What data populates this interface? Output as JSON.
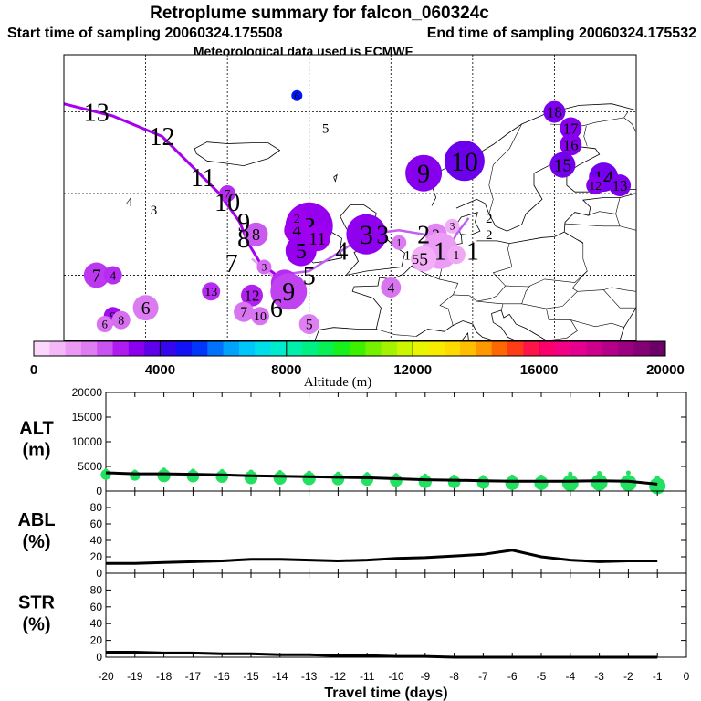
{
  "title": "Retroplume summary for falcon_060324c",
  "start_label": "Start time of sampling 20060324.175508",
  "end_label": "End time of sampling 20060324.175532",
  "met_label": "Meteorological data used is ECMWF",
  "colorbar": {
    "title": "Altitude (m)",
    "ticks": [
      "0",
      "4000",
      "8000",
      "12000",
      "16000",
      "20000"
    ],
    "range": [
      0,
      20000
    ]
  },
  "map_labels": [
    {
      "t": "13",
      "lon": -36,
      "lat": 70,
      "s": "large"
    },
    {
      "t": "12",
      "lon": -28,
      "lat": 67,
      "s": "large"
    },
    {
      "t": "11",
      "lon": -23,
      "lat": 62,
      "s": "large"
    },
    {
      "t": "10",
      "lon": -20,
      "lat": 59,
      "s": "large"
    },
    {
      "t": "9",
      "lon": -18,
      "lat": 56.5,
      "s": "large"
    },
    {
      "t": "8",
      "lon": -18,
      "lat": 54.5,
      "s": "large"
    },
    {
      "t": "7",
      "lon": -19.5,
      "lat": 51.5,
      "s": "large"
    },
    {
      "t": "6",
      "lon": -14,
      "lat": 46,
      "s": "large"
    },
    {
      "t": "5",
      "lon": -10,
      "lat": 50,
      "s": "large"
    },
    {
      "t": "4",
      "lon": -6,
      "lat": 53,
      "s": "large"
    },
    {
      "t": "3",
      "lon": -1,
      "lat": 55,
      "s": "large"
    },
    {
      "t": "2",
      "lon": 4,
      "lat": 55,
      "s": "large"
    },
    {
      "t": "1",
      "lon": 10,
      "lat": 53,
      "s": "large"
    },
    {
      "t": "4",
      "lon": -32,
      "lat": 59,
      "s": "small"
    },
    {
      "t": "3",
      "lon": -29,
      "lat": 58,
      "s": "small"
    },
    {
      "t": "6",
      "lon": -11,
      "lat": 80,
      "s": "small"
    },
    {
      "t": "5",
      "lon": -8,
      "lat": 68,
      "s": "small"
    },
    {
      "t": "2",
      "lon": 12,
      "lat": 57,
      "s": "small"
    },
    {
      "t": "1",
      "lon": 2,
      "lat": 52.5,
      "s": "small"
    },
    {
      "t": "5",
      "lon": 3,
      "lat": 52,
      "s": "small"
    },
    {
      "t": "2",
      "lon": 12,
      "lat": 55,
      "s": "small"
    }
  ],
  "plume_circles": [
    {
      "t": "9",
      "lon": 4,
      "lat": 62.5,
      "r": 20,
      "z": 3300
    },
    {
      "t": "10",
      "lon": 9,
      "lat": 64,
      "r": 22,
      "z": 3600
    },
    {
      "t": "3",
      "lon": -10,
      "lat": 56,
      "r": 26,
      "z": 3100
    },
    {
      "t": "3",
      "lon": -3,
      "lat": 55,
      "r": 22,
      "z": 3200
    },
    {
      "t": "4",
      "lon": -11.5,
      "lat": 55.5,
      "r": 14,
      "z": 3000
    },
    {
      "t": "2",
      "lon": -11.5,
      "lat": 57,
      "r": 10,
      "z": 3000
    },
    {
      "t": "5",
      "lon": -11,
      "lat": 53,
      "r": 17,
      "z": 3100
    },
    {
      "t": "11",
      "lon": -9,
      "lat": 54.5,
      "r": 14,
      "z": 3000
    },
    {
      "t": "8",
      "lon": -16.5,
      "lat": 55,
      "r": 13,
      "z": 2200
    },
    {
      "t": "3",
      "lon": -15.5,
      "lat": 51,
      "r": 8,
      "z": 2000
    },
    {
      "t": "6",
      "lon": -13,
      "lat": 49,
      "r": 15,
      "z": 2600
    },
    {
      "t": "9",
      "lon": -12.5,
      "lat": 48,
      "r": 20,
      "z": 2400
    },
    {
      "t": "7",
      "lon": -20,
      "lat": 60,
      "r": 9,
      "z": 2600
    },
    {
      "t": "2",
      "lon": 5.5,
      "lat": 55,
      "r": 12,
      "z": 1600
    },
    {
      "t": "1",
      "lon": 6,
      "lat": 53,
      "r": 20,
      "z": 1200
    },
    {
      "t": "5",
      "lon": 4,
      "lat": 52,
      "r": 14,
      "z": 900
    },
    {
      "t": "3",
      "lon": 7.5,
      "lat": 56,
      "r": 8,
      "z": 900
    },
    {
      "t": "1",
      "lon": 8,
      "lat": 52.5,
      "r": 10,
      "z": 1000
    },
    {
      "t": "4",
      "lon": 0,
      "lat": 48.5,
      "r": 11,
      "z": 1900
    },
    {
      "t": "1",
      "lon": 1,
      "lat": 54,
      "r": 8,
      "z": 1800
    },
    {
      "t": "7",
      "lon": -36,
      "lat": 50,
      "r": 14,
      "z": 2500
    },
    {
      "t": "4",
      "lon": -34,
      "lat": 50,
      "r": 10,
      "z": 2600
    },
    {
      "t": "13",
      "lon": -22,
      "lat": 48,
      "r": 10,
      "z": 2600
    },
    {
      "t": "12",
      "lon": -17,
      "lat": 47.5,
      "r": 12,
      "z": 2700
    },
    {
      "t": "7",
      "lon": -18,
      "lat": 45.5,
      "r": 11,
      "z": 1900
    },
    {
      "t": "10",
      "lon": -16,
      "lat": 45,
      "r": 10,
      "z": 1900
    },
    {
      "t": "6",
      "lon": -30,
      "lat": 46,
      "r": 14,
      "z": 1800
    },
    {
      "t": "5",
      "lon": -10,
      "lat": 44,
      "r": 11,
      "z": 1700
    },
    {
      "t": "9",
      "lon": -34,
      "lat": 45,
      "r": 10,
      "z": 2900
    },
    {
      "t": "8",
      "lon": -33,
      "lat": 44.5,
      "r": 10,
      "z": 2000
    },
    {
      "t": "6",
      "lon": -35,
      "lat": 44,
      "r": 9,
      "z": 1900
    },
    {
      "t": "6",
      "lon": -11.5,
      "lat": 72,
      "r": 6,
      "z": 5000
    },
    {
      "t": "18",
      "lon": 20,
      "lat": 70,
      "r": 12,
      "z": 3400
    },
    {
      "t": "17",
      "lon": 22,
      "lat": 68,
      "r": 12,
      "z": 3300
    },
    {
      "t": "16",
      "lon": 22,
      "lat": 66,
      "r": 12,
      "z": 3300
    },
    {
      "t": "15",
      "lon": 21,
      "lat": 63.5,
      "r": 14,
      "z": 3500
    },
    {
      "t": "14",
      "lon": 26,
      "lat": 62,
      "r": 16,
      "z": 3500
    },
    {
      "t": "13",
      "lon": 28,
      "lat": 61,
      "r": 12,
      "z": 3400
    },
    {
      "t": "12",
      "lon": 25,
      "lat": 61,
      "r": 10,
      "z": 3300
    }
  ],
  "trajectory_main": [
    [
      -40,
      71
    ],
    [
      -34,
      69.5
    ],
    [
      -28,
      67
    ],
    [
      -23,
      62
    ],
    [
      -21,
      60
    ],
    [
      -18.5,
      56.5
    ],
    [
      -17.5,
      54
    ],
    [
      -16,
      51.5
    ],
    [
      -14,
      50
    ]
  ],
  "trajectory_east": [
    [
      -14,
      50
    ],
    [
      -10,
      50.5
    ],
    [
      -6,
      53
    ],
    [
      -3,
      55
    ],
    [
      1,
      55.5
    ],
    [
      4,
      55
    ],
    [
      7,
      53
    ],
    [
      8,
      55
    ],
    [
      9.5,
      57
    ]
  ],
  "chart_data": [
    {
      "type": "line",
      "title": "ALT (m)",
      "label_lines": [
        "ALT",
        "(m)"
      ],
      "xlabel": "Travel time (days)",
      "x": [
        -20,
        -19,
        -18,
        -17,
        -16,
        -15,
        -14,
        -13,
        -12,
        -11,
        -10,
        -9,
        -8,
        -7,
        -6,
        -5,
        -4,
        -3,
        -2,
        -1
      ],
      "ylim": [
        0,
        20000
      ],
      "yticks": [
        "0",
        "5000",
        "10000",
        "15000",
        "20000"
      ],
      "series": [
        {
          "name": "mean altitude",
          "values": [
            3700,
            3500,
            3500,
            3400,
            3300,
            3100,
            3000,
            2900,
            2800,
            2700,
            2500,
            2300,
            2200,
            2100,
            2000,
            2000,
            2000,
            2100,
            2000,
            1400
          ]
        },
        {
          "name": "altitude spread",
          "values": [
            4100,
            3900,
            4300,
            4100,
            4000,
            3900,
            3800,
            3700,
            3500,
            3400,
            3200,
            3100,
            2900,
            2800,
            2900,
            2900,
            3500,
            3600,
            3700,
            2700
          ]
        }
      ]
    },
    {
      "type": "line",
      "title": "ABL (%)",
      "label_lines": [
        "ABL",
        "(%)"
      ],
      "x": [
        -20,
        -19,
        -18,
        -17,
        -16,
        -15,
        -14,
        -13,
        -12,
        -11,
        -10,
        -9,
        -8,
        -7,
        -6,
        -5,
        -4,
        -3,
        -2,
        -1
      ],
      "ylim": [
        0,
        100
      ],
      "yticks": [
        "0",
        "20",
        "40",
        "60",
        "80"
      ],
      "series": [
        {
          "name": "ABL fraction",
          "values": [
            12,
            12,
            13,
            14,
            15,
            17,
            17,
            16,
            15,
            16,
            18,
            19,
            21,
            23,
            28,
            20,
            16,
            14,
            15,
            15
          ]
        }
      ]
    },
    {
      "type": "line",
      "title": "STR (%)",
      "label_lines": [
        "STR",
        "(%)"
      ],
      "x": [
        -20,
        -19,
        -18,
        -17,
        -16,
        -15,
        -14,
        -13,
        -12,
        -11,
        -10,
        -9,
        -8,
        -7,
        -6,
        -5,
        -4,
        -3,
        -2,
        -1
      ],
      "ylim": [
        0,
        100
      ],
      "yticks": [
        "0",
        "20",
        "40",
        "60",
        "80"
      ],
      "series": [
        {
          "name": "stratospheric fraction",
          "values": [
            6,
            6,
            5,
            5,
            4,
            4,
            3,
            3,
            2,
            2,
            1,
            1,
            0,
            0,
            0,
            0,
            0,
            0,
            0,
            0
          ]
        }
      ]
    }
  ],
  "x_ticks": [
    "-20",
    "-19",
    "-18",
    "-17",
    "-16",
    "-15",
    "-14",
    "-13",
    "-12",
    "-11",
    "-10",
    "-9",
    "-8",
    "-7",
    "-6",
    "-5",
    "-4",
    "-3",
    "-2",
    "-1",
    "0"
  ]
}
